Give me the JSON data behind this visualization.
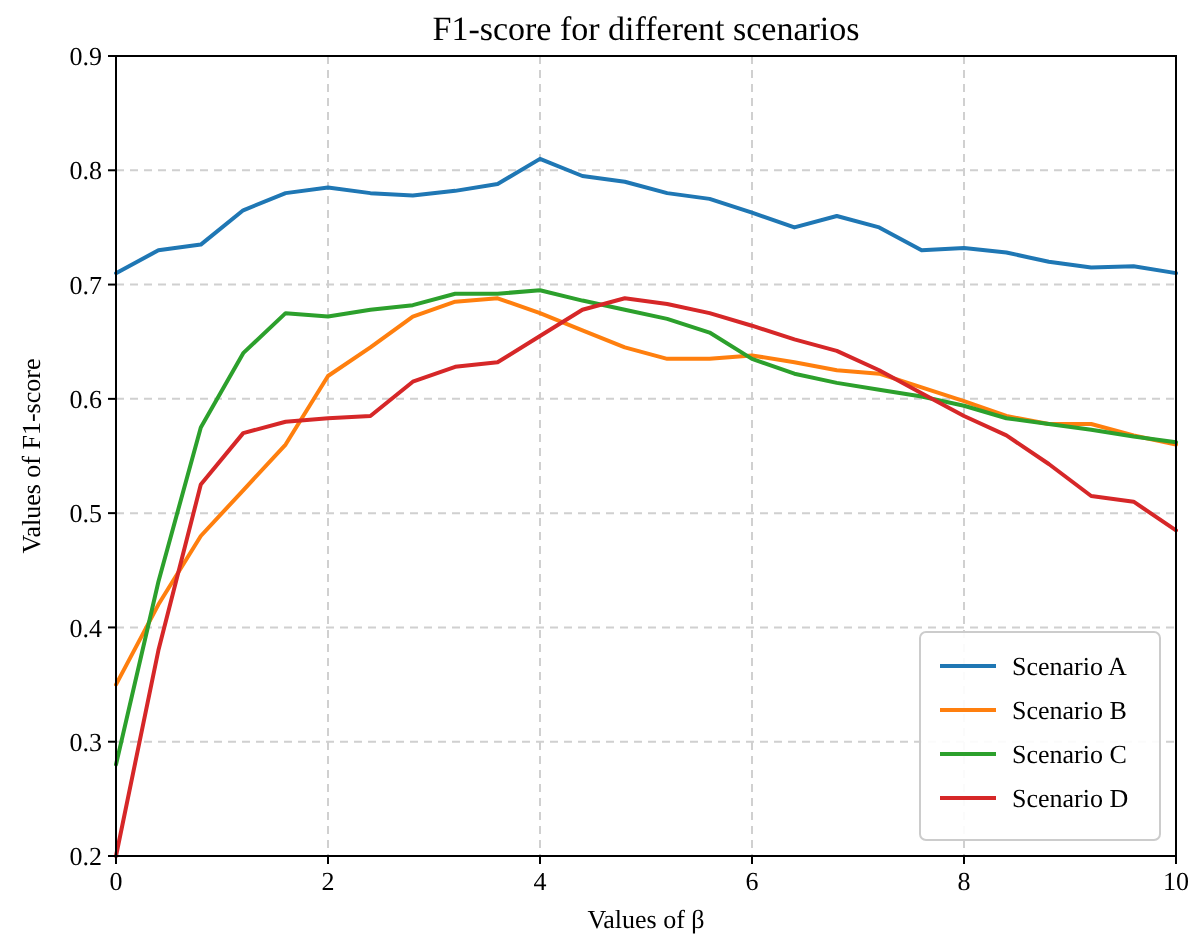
{
  "chart_data": {
    "type": "line",
    "title": "F1-score for different scenarios",
    "xlabel": "Values of β",
    "ylabel": "Values of F1-score",
    "x": [
      0,
      0.4,
      0.8,
      1.2,
      1.6,
      2,
      2.4,
      2.8,
      3.2,
      3.6,
      4,
      4.4,
      4.8,
      5.2,
      5.6,
      6,
      6.4,
      6.8,
      7.2,
      7.6,
      8,
      8.4,
      8.8,
      9.2,
      9.6,
      10
    ],
    "series": [
      {
        "name": "Scenario A",
        "color": "#1f77b4",
        "values": [
          0.71,
          0.73,
          0.735,
          0.765,
          0.78,
          0.785,
          0.78,
          0.778,
          0.782,
          0.788,
          0.81,
          0.795,
          0.79,
          0.78,
          0.775,
          0.763,
          0.75,
          0.76,
          0.75,
          0.73,
          0.732,
          0.728,
          0.72,
          0.715,
          0.716,
          0.71
        ]
      },
      {
        "name": "Scenario B",
        "color": "#ff7f0e",
        "values": [
          0.35,
          0.42,
          0.48,
          0.52,
          0.56,
          0.62,
          0.645,
          0.672,
          0.685,
          0.688,
          0.675,
          0.66,
          0.645,
          0.635,
          0.635,
          0.638,
          0.632,
          0.625,
          0.622,
          0.61,
          0.598,
          0.585,
          0.578,
          0.578,
          0.568,
          0.56
        ]
      },
      {
        "name": "Scenario C",
        "color": "#2ca02c",
        "values": [
          0.28,
          0.44,
          0.575,
          0.64,
          0.675,
          0.672,
          0.678,
          0.682,
          0.692,
          0.692,
          0.695,
          0.686,
          0.678,
          0.67,
          0.658,
          0.635,
          0.622,
          0.614,
          0.608,
          0.602,
          0.594,
          0.583,
          0.578,
          0.573,
          0.567,
          0.562
        ]
      },
      {
        "name": "Scenario D",
        "color": "#d62728",
        "values": [
          0.2,
          0.38,
          0.525,
          0.57,
          0.58,
          0.583,
          0.585,
          0.615,
          0.628,
          0.632,
          0.655,
          0.678,
          0.688,
          0.683,
          0.675,
          0.664,
          0.652,
          0.642,
          0.625,
          0.605,
          0.585,
          0.568,
          0.543,
          0.515,
          0.51,
          0.485
        ]
      }
    ],
    "xlim": [
      0,
      10
    ],
    "xticks": [
      0,
      2,
      4,
      6,
      8,
      10
    ],
    "ylim": [
      0.2,
      0.9
    ],
    "yticks": [
      0.2,
      0.3,
      0.4,
      0.5,
      0.6,
      0.7,
      0.8,
      0.9
    ],
    "grid": true,
    "legend": "bottom right",
    "line_style": "solid",
    "marker": "none"
  }
}
